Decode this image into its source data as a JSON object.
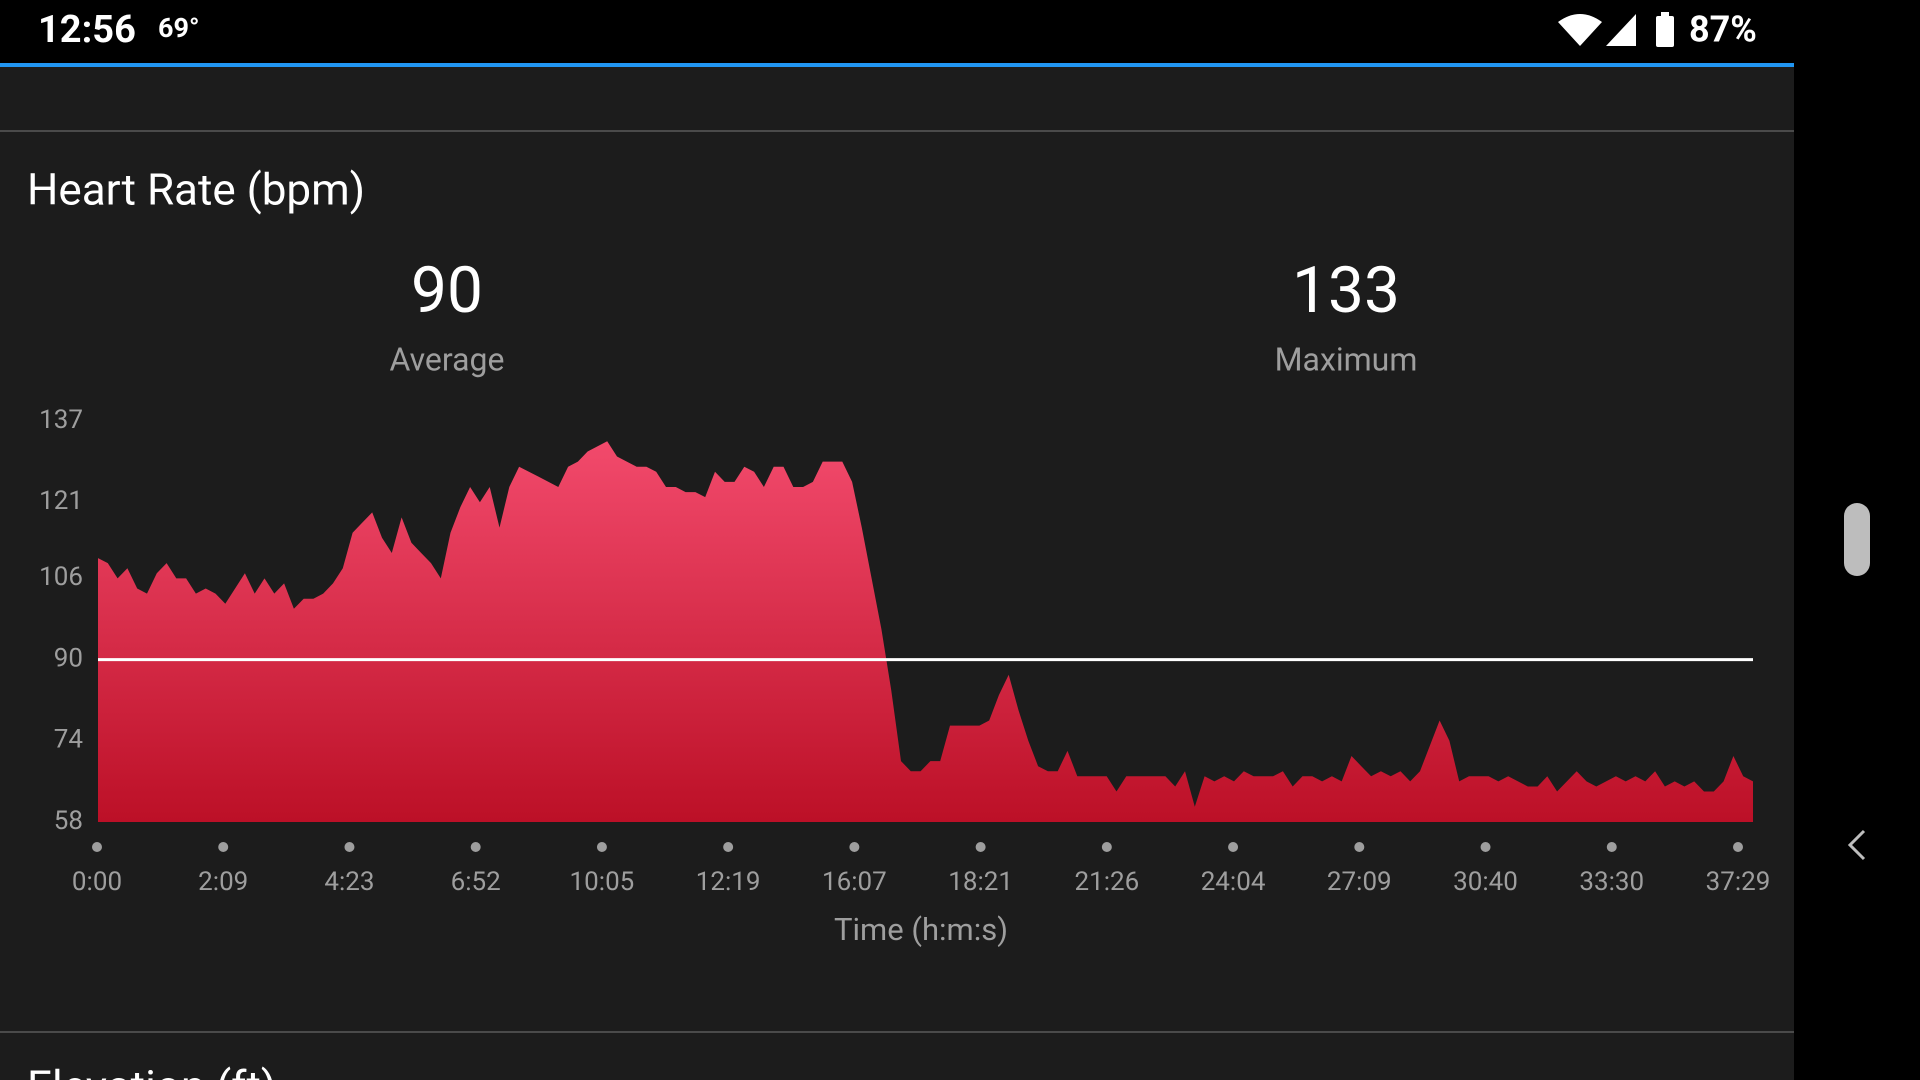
{
  "status_bar": {
    "time": "12:56",
    "temperature": "69°",
    "battery": "87%"
  },
  "section_title": "Heart Rate (bpm)",
  "average_label": "Average",
  "maximum_label": "Maximum",
  "chart_data": {
    "type": "area",
    "average": 90,
    "maximum": 133,
    "x_label": "Time (h:m:s)",
    "xtick_labels": [
      "0:00",
      "2:09",
      "4:23",
      "6:52",
      "10:05",
      "12:19",
      "16:07",
      "18:21",
      "21:26",
      "24:04",
      "27:09",
      "30:40",
      "33:30",
      "37:29"
    ],
    "values": [
      110,
      109,
      106,
      108,
      104,
      103,
      107,
      109,
      106,
      106,
      103,
      104,
      103,
      101,
      104,
      107,
      103,
      106,
      103,
      105,
      100,
      102,
      102,
      103,
      105,
      108,
      115,
      117,
      119,
      114,
      111,
      118,
      113,
      111,
      109,
      106,
      115,
      120,
      124,
      121,
      124,
      116,
      124,
      128,
      127,
      126,
      125,
      124,
      128,
      129,
      131,
      132,
      133,
      130,
      129,
      128,
      128,
      127,
      124,
      124,
      123,
      123,
      122,
      127,
      125,
      125,
      128,
      127,
      124,
      128,
      128,
      124,
      124,
      125,
      129,
      129,
      129,
      125,
      116,
      106,
      96,
      84,
      70,
      68,
      68,
      70,
      70,
      77,
      77,
      77,
      77,
      78,
      83,
      87,
      80,
      74,
      69,
      68,
      68,
      72,
      67,
      67,
      67,
      67,
      64,
      67,
      67,
      67,
      67,
      67,
      65,
      68,
      61,
      67,
      66,
      67,
      66,
      68,
      67,
      67,
      67,
      68,
      65,
      67,
      67,
      66,
      67,
      66,
      71,
      69,
      67,
      68,
      67,
      68,
      66,
      68,
      73,
      78,
      74,
      66,
      67,
      67,
      67,
      66,
      67,
      66,
      65,
      65,
      67,
      64,
      66,
      68,
      66,
      65,
      66,
      67,
      66,
      67,
      66,
      68,
      65,
      66,
      65,
      66,
      64,
      64,
      66,
      71,
      67,
      66
    ],
    "ylim": [
      58,
      137
    ],
    "yticks": [
      58,
      74,
      90,
      106,
      121,
      137
    ],
    "color_top": "#f24a6c",
    "color_bottom": "#bc1027",
    "average_line_color": "#ffffff"
  },
  "next_section_title": "Elevation (ft)"
}
